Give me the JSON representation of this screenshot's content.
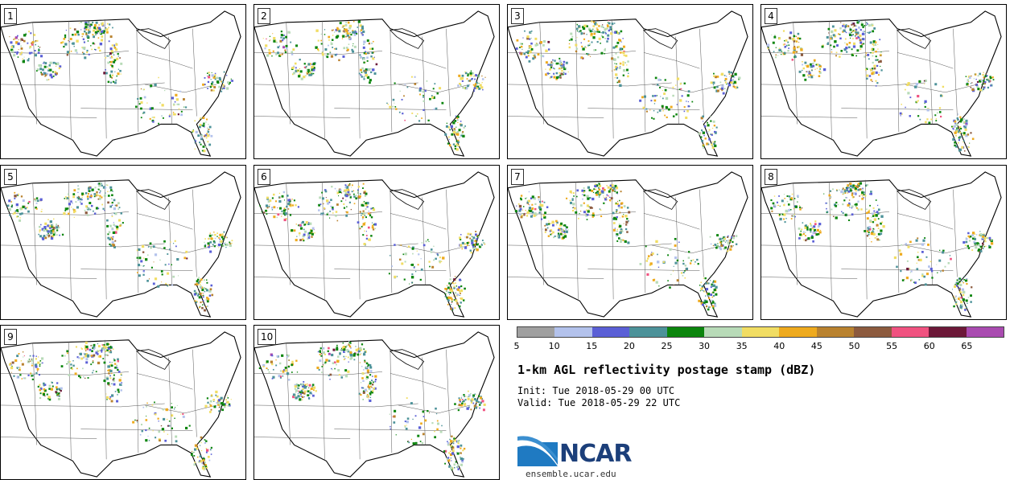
{
  "stamps": [
    {
      "label": "1"
    },
    {
      "label": "2"
    },
    {
      "label": "3"
    },
    {
      "label": "4"
    },
    {
      "label": "5"
    },
    {
      "label": "6"
    },
    {
      "label": "7"
    },
    {
      "label": "8"
    },
    {
      "label": "9"
    },
    {
      "label": "10"
    }
  ],
  "colorbar": {
    "colors": [
      "#a0a0a0",
      "#b3c2ec",
      "#5a5fd6",
      "#4c9299",
      "#0b850d",
      "#b8dbb8",
      "#f1dd63",
      "#eeaa1e",
      "#b9822f",
      "#8c5a3e",
      "#f05280",
      "#6c1838",
      "#a94bb0"
    ],
    "ticks": [
      "5",
      "10",
      "15",
      "20",
      "25",
      "30",
      "35",
      "40",
      "45",
      "50",
      "55",
      "60",
      "65"
    ]
  },
  "title": "1-km AGL reflectivity postage stamp (dBZ)",
  "init": "Init: Tue 2018-05-29 00 UTC",
  "valid": "Valid: Tue 2018-05-29 22 UTC",
  "logo": {
    "wordmark": "NCAR",
    "url": "ensemble.ucar.edu"
  }
}
